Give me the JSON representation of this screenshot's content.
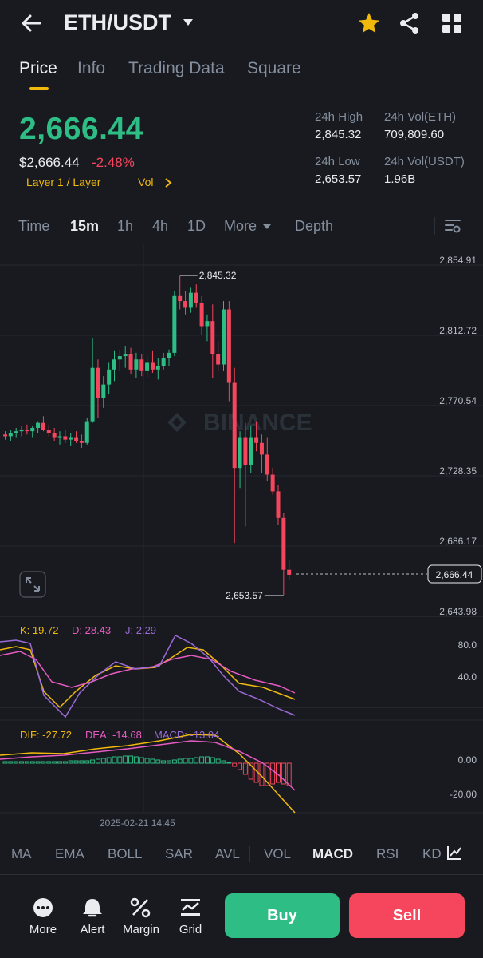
{
  "header": {
    "pair": "ETH/USDT",
    "icons": [
      "back-arrow-icon",
      "chevron-down-icon",
      "star-icon",
      "share-icon",
      "grid-icon"
    ],
    "favorite_color": "#F0B90B"
  },
  "tabs": [
    "Price",
    "Info",
    "Trading Data",
    "Square"
  ],
  "active_tab": "Price",
  "price": {
    "last": "2,666.44",
    "usd": "$2,666.44",
    "change": "-2.48%",
    "tag_layer": "Layer 1 / Layer",
    "tag_vol": "Vol",
    "stats": {
      "high_label": "24h High",
      "high_value": "2,845.32",
      "low_label": "24h Low",
      "low_value": "2,653.57",
      "vol_eth_label": "24h Vol(ETH)",
      "vol_eth_value": "709,809.60",
      "vol_usdt_label": "24h Vol(USDT)",
      "vol_usdt_value": "1.96B"
    }
  },
  "intervals": [
    "Time",
    "15m",
    "1h",
    "4h",
    "1D",
    "More",
    "Depth"
  ],
  "active_interval": "15m",
  "chart": {
    "price_axis": [
      "2,854.91",
      "2,812.72",
      "2,770.54",
      "2,728.35",
      "2,686.17",
      "2,643.98"
    ],
    "high_marker": "2,845.32",
    "low_marker": "2,653.57",
    "current_price": "2,666.44",
    "watermark": "BINANCE",
    "kdj": {
      "k_label": "K: 19.72",
      "d_label": "D: 28.43",
      "j_label": "J: 2.29",
      "axis": [
        "80.0",
        "40.0"
      ]
    },
    "macd": {
      "dif_label": "DIF: -27.72",
      "dea_label": "DEA: -14.68",
      "macd_label": "MACD: -13.04",
      "axis": [
        "0.00",
        "-20.00"
      ]
    },
    "time_label": "2025-02-21 14:45",
    "colors": {
      "up": "#2EBD85",
      "down": "#F6465D",
      "k": "#F0B90B",
      "d": "#E75BC2",
      "j": "#9B6AD6"
    }
  },
  "chart_data": {
    "type": "candlestick",
    "interval": "15m",
    "price_axis_range": [
      2643.98,
      2854.91
    ],
    "high": 2845.32,
    "low": 2653.57,
    "last": 2666.44,
    "candles_ohlc": [
      [
        2750,
        2752,
        2747,
        2749
      ],
      [
        2749,
        2753,
        2746,
        2751
      ],
      [
        2751,
        2754,
        2748,
        2752
      ],
      [
        2752,
        2755,
        2749,
        2753
      ],
      [
        2753,
        2756,
        2750,
        2752
      ],
      [
        2752,
        2755,
        2748,
        2754
      ],
      [
        2754,
        2758,
        2751,
        2757
      ],
      [
        2757,
        2761,
        2752,
        2753
      ],
      [
        2753,
        2756,
        2749,
        2751
      ],
      [
        2751,
        2754,
        2746,
        2748
      ],
      [
        2748,
        2752,
        2744,
        2749
      ],
      [
        2749,
        2753,
        2745,
        2747
      ],
      [
        2747,
        2751,
        2743,
        2748
      ],
      [
        2748,
        2752,
        2745,
        2746
      ],
      [
        2746,
        2750,
        2742,
        2745
      ],
      [
        2745,
        2760,
        2744,
        2758
      ],
      [
        2758,
        2808,
        2757,
        2790
      ],
      [
        2790,
        2795,
        2760,
        2772
      ],
      [
        2772,
        2785,
        2766,
        2780
      ],
      [
        2780,
        2793,
        2774,
        2789
      ],
      [
        2789,
        2800,
        2782,
        2795
      ],
      [
        2795,
        2801,
        2788,
        2797
      ],
      [
        2797,
        2803,
        2790,
        2798
      ],
      [
        2798,
        2802,
        2786,
        2789
      ],
      [
        2789,
        2799,
        2784,
        2795
      ],
      [
        2795,
        2798,
        2785,
        2788
      ],
      [
        2788,
        2797,
        2784,
        2793
      ],
      [
        2793,
        2800,
        2787,
        2789
      ],
      [
        2789,
        2796,
        2783,
        2791
      ],
      [
        2791,
        2799,
        2789,
        2796
      ],
      [
        2796,
        2801,
        2791,
        2799
      ],
      [
        2799,
        2836,
        2797,
        2833
      ],
      [
        2833,
        2845,
        2825,
        2830
      ],
      [
        2830,
        2836,
        2822,
        2826
      ],
      [
        2826,
        2838,
        2823,
        2835
      ],
      [
        2835,
        2840,
        2826,
        2829
      ],
      [
        2829,
        2833,
        2810,
        2815
      ],
      [
        2815,
        2822,
        2806,
        2818
      ],
      [
        2818,
        2828,
        2784,
        2798
      ],
      [
        2798,
        2806,
        2788,
        2792
      ],
      [
        2792,
        2830,
        2788,
        2825
      ],
      [
        2825,
        2830,
        2770,
        2781
      ],
      [
        2781,
        2790,
        2685,
        2730
      ],
      [
        2730,
        2752,
        2718,
        2748
      ],
      [
        2748,
        2757,
        2695,
        2732
      ],
      [
        2732,
        2755,
        2727,
        2748
      ],
      [
        2748,
        2758,
        2740,
        2745
      ],
      [
        2745,
        2750,
        2727,
        2738
      ],
      [
        2738,
        2748,
        2722,
        2726
      ],
      [
        2726,
        2730,
        2714,
        2716
      ],
      [
        2716,
        2720,
        2696,
        2700
      ],
      [
        2700,
        2703,
        2654,
        2669
      ],
      [
        2669,
        2675,
        2663,
        2666
      ]
    ],
    "indicators": {
      "KDJ": {
        "K": 19.72,
        "D": 28.43,
        "J": 2.29
      },
      "MACD": {
        "DIF": -27.72,
        "DEA": -14.68,
        "MACD": -13.04
      }
    },
    "time_label": "2025-02-21 14:45"
  },
  "indicators_bar": [
    "MA",
    "EMA",
    "BOLL",
    "SAR",
    "AVL",
    "VOL",
    "MACD",
    "RSI",
    "KD"
  ],
  "active_indicator": "MACD",
  "actions": [
    {
      "label": "More",
      "icon": "more-dots-icon"
    },
    {
      "label": "Alert",
      "icon": "bell-icon"
    },
    {
      "label": "Margin",
      "icon": "margin-percent-icon"
    },
    {
      "label": "Grid",
      "icon": "grid-bot-icon"
    }
  ],
  "buttons": {
    "buy": "Buy",
    "sell": "Sell"
  }
}
